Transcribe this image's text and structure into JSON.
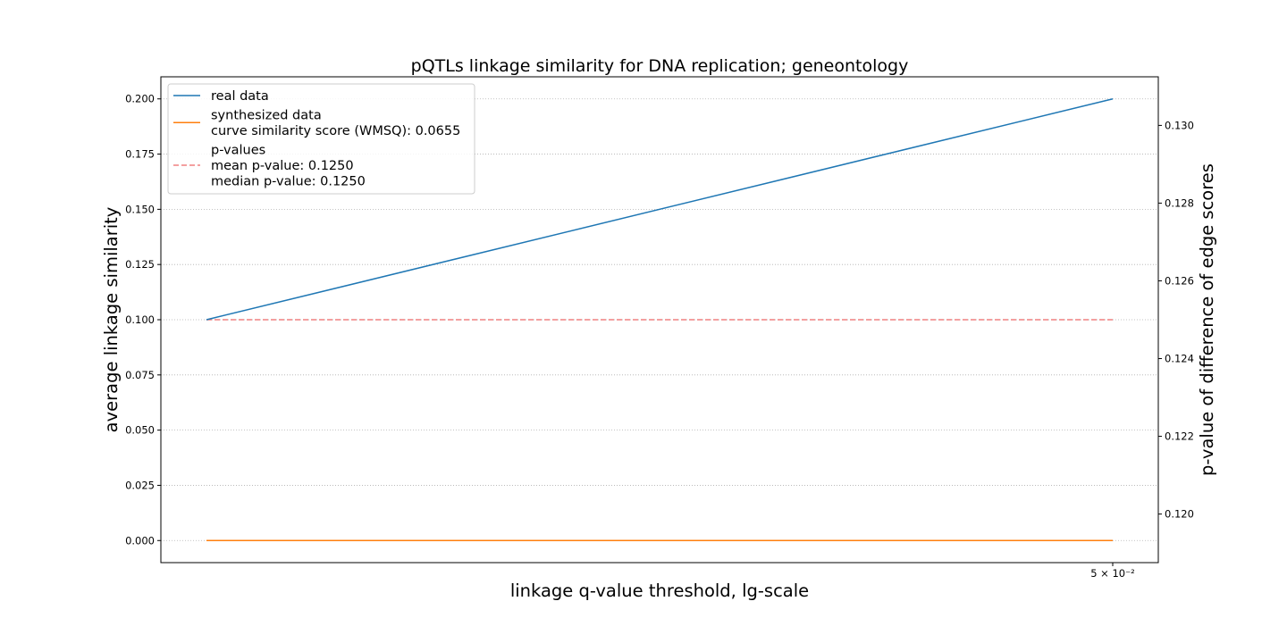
{
  "chart_data": {
    "type": "line",
    "title": "pQTLs linkage similarity for DNA replication; geneontology",
    "xlabel": "linkage q-value threshold, lg-scale",
    "ylabel": "average linkage similarity",
    "y2label": "p-value of difference of edge scores",
    "x_scale": "log",
    "x_tick_labels": [
      "5 × 10⁻²"
    ],
    "ylim": [
      -0.01,
      0.21
    ],
    "y_ticks": [
      0.0,
      0.025,
      0.05,
      0.075,
      0.1,
      0.125,
      0.15,
      0.175,
      0.2
    ],
    "y_tick_labels": [
      "0.000",
      "0.025",
      "0.050",
      "0.075",
      "0.100",
      "0.125",
      "0.150",
      "0.175",
      "0.200"
    ],
    "y2lim": [
      0.11875,
      0.13125
    ],
    "y2_ticks": [
      0.12,
      0.122,
      0.124,
      0.126,
      0.128,
      0.13
    ],
    "y2_tick_labels": [
      "0.120",
      "0.122",
      "0.124",
      "0.126",
      "0.128",
      "0.130"
    ],
    "grid": "horizontal dotted",
    "legend_position": "top-left",
    "series": [
      {
        "name": "real data",
        "axis": "left",
        "color": "#1f77b4",
        "style": "solid",
        "x": [
          "first",
          "5 × 10⁻²"
        ],
        "values": [
          0.1,
          0.2
        ]
      },
      {
        "name": "synthesized data",
        "axis": "left",
        "color": "#ff7f0e",
        "style": "solid",
        "x": [
          "first",
          "5 × 10⁻²"
        ],
        "values": [
          0.0,
          0.0
        ]
      },
      {
        "name": "p-values",
        "axis": "right",
        "color": "#f08080",
        "style": "dashed",
        "x": [
          "first",
          "5 × 10⁻²"
        ],
        "values": [
          0.125,
          0.125
        ]
      }
    ],
    "legend": [
      {
        "lines": [
          "real data"
        ],
        "color": "#1f77b4",
        "style": "solid"
      },
      {
        "lines": [
          "synthesized data",
          "curve similarity score (WMSQ): 0.0655"
        ],
        "color": "#ff7f0e",
        "style": "solid"
      },
      {
        "lines": [
          "p-values",
          "mean p-value: 0.1250",
          "median p-value: 0.1250"
        ],
        "color": "#f08080",
        "style": "dashed"
      }
    ]
  }
}
